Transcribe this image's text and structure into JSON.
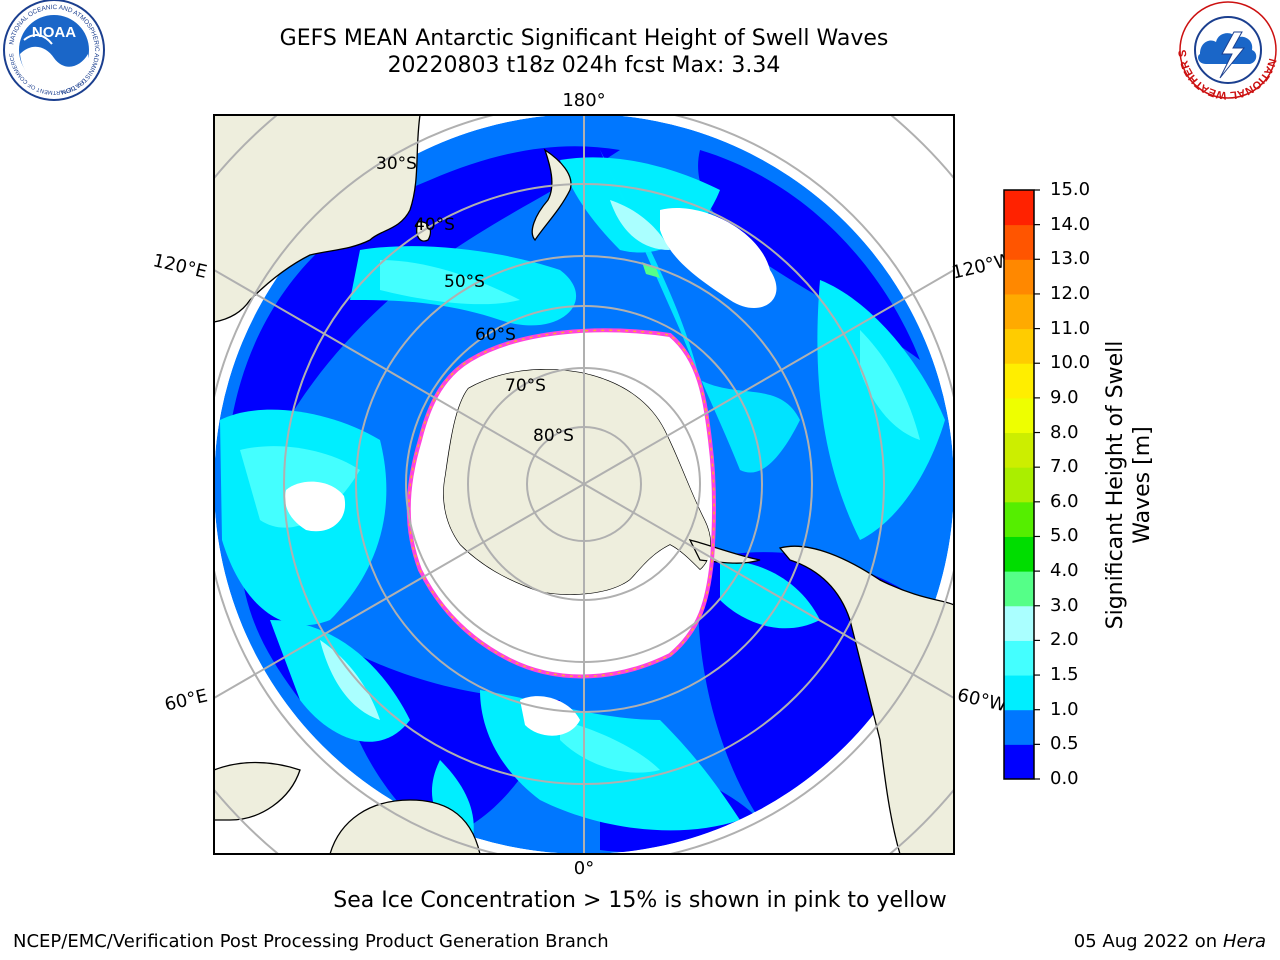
{
  "header": {
    "title_line1": "GEFS MEAN Antarctic Significant Height of Swell Waves",
    "title_line2": "20220803 t18z 024h fcst   Max: 3.34"
  },
  "logos": {
    "left": {
      "name": "NOAA",
      "ring_text": "NATIONAL OCEANIC AND ATMOSPHERIC ADMINISTRATION",
      "ring_text_bottom": "U.S. DEPARTMENT OF COMMERCE"
    },
    "right": {
      "ring_text": "NATIONAL WEATHER SERVICE"
    }
  },
  "map": {
    "projection": "south polar stereographic",
    "longitude_labels": {
      "top": "180°",
      "bottom": "0°",
      "left_upper": "120°E",
      "left_lower": "60°E",
      "right_upper": "120°W",
      "right_lower": "60°W"
    },
    "latitude_labels": [
      "30°S",
      "40°S",
      "50°S",
      "60°S",
      "70°S",
      "80°S"
    ],
    "colors": {
      "land": "#eeeedd",
      "sea_ice": "#ffffff",
      "ice_edge_pink": "#ff44dd",
      "ice_edge_orange": "#ffaa33",
      "gridline": "#b0b0b0",
      "coast": "#000000"
    }
  },
  "colorbar": {
    "label_line1": "Significant Height of Swell",
    "label_line2": "Waves [m]",
    "ticks": [
      "0.0",
      "0.5",
      "1.0",
      "1.5",
      "2.0",
      "3.0",
      "4.0",
      "5.0",
      "6.0",
      "7.0",
      "8.0",
      "9.0",
      "10.0",
      "11.0",
      "12.0",
      "13.0",
      "14.0",
      "15.0"
    ],
    "colors": [
      "#0000ff",
      "#0077ff",
      "#00eeff",
      "#44ffff",
      "#aaffff",
      "#55ff88",
      "#00dd00",
      "#55ee00",
      "#aaee00",
      "#ccee00",
      "#eeff00",
      "#ffee00",
      "#ffcc00",
      "#ffaa00",
      "#ff8800",
      "#ff5500",
      "#ff2200"
    ]
  },
  "chart_data": {
    "type": "heatmap",
    "title": "GEFS MEAN Antarctic Significant Height of Swell Waves",
    "subtitle": "20220803 t18z 024h fcst   Max: 3.34",
    "variable": "Significant Height of Swell Waves [m]",
    "max_value": 3.34,
    "colorbar_range": [
      0.0,
      15.0
    ],
    "levels": [
      0.0,
      0.5,
      1.0,
      1.5,
      2.0,
      3.0,
      4.0,
      5.0,
      6.0,
      7.0,
      8.0,
      9.0,
      10.0,
      11.0,
      12.0,
      13.0,
      14.0,
      15.0
    ]
  },
  "footer": {
    "note": "Sea Ice Concentration > 15% is shown in pink to yellow",
    "left": "NCEP/EMC/Verification Post Processing Product Generation Branch",
    "right_date": "05 Aug 2022 on",
    "right_machine": "Hera"
  }
}
